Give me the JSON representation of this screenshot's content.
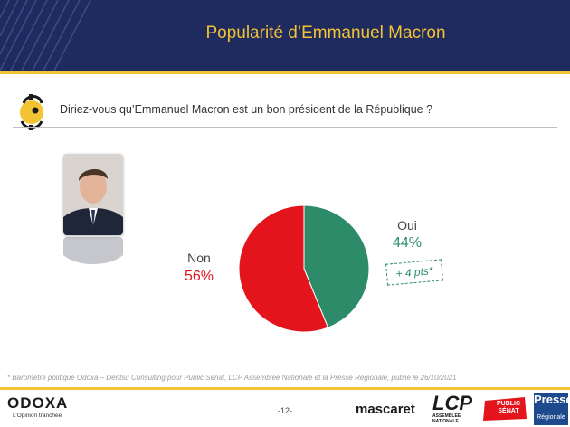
{
  "header": {
    "title": "Popularité d’Emmanuel Macron",
    "bg_color": "#1f2a5e",
    "accent_color": "#f2c332"
  },
  "question": {
    "icon": "odoxa-question-icon",
    "text": "Diriez-vous qu’Emmanuel Macron est un bon président de la République ?"
  },
  "photo": {
    "icon": "portrait-photo"
  },
  "chart_data": {
    "type": "pie",
    "title": "",
    "slices": [
      {
        "name": "Oui",
        "value": 44,
        "label": "44%",
        "color": "#2e8b6a",
        "change": "+ 4 pts*"
      },
      {
        "name": "Non",
        "value": 56,
        "label": "56%",
        "color": "#e3141b"
      }
    ]
  },
  "footer": {
    "footnote": "* Baromètre politique Odoxa – Dentsu Consulting pour Public Sénat, LCP Assemblée Nationale et la Presse Régionale, publié le 26/10/2021",
    "page_number": "-12-",
    "logos": {
      "odoxa": "ODOXA",
      "odoxa_tagline": "L’Opinion tranchée",
      "mascaret": "mascaret",
      "lcp": "LCP",
      "lcp_sub": "ASSEMBLÉE NATIONALE",
      "public_senat": "PUBLIC SÉNAT",
      "presse_regionale": "Presse",
      "presse_regionale_sub": "Régionale"
    }
  }
}
